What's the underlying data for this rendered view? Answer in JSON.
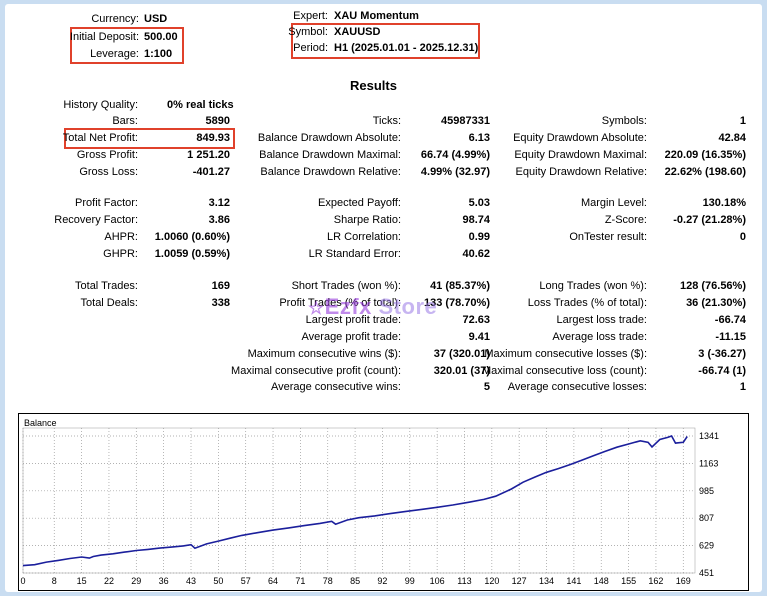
{
  "header": {
    "currency_label": "Currency:",
    "currency": "USD",
    "deposit_label": "Initial Deposit:",
    "deposit": "500.00",
    "leverage_label": "Leverage:",
    "leverage": "1:100",
    "expert_label": "Expert:",
    "expert": "XAU Momentum",
    "symbol_label": "Symbol:",
    "symbol": "XAUUSD",
    "period_label": "Period:",
    "period": "H1 (2025.01.01 - 2025.12.31)"
  },
  "results_title": "Results",
  "col1": {
    "history_quality_label": "History Quality:",
    "history_quality": "0% real ticks",
    "bars_label": "Bars:",
    "bars": "5890",
    "net_profit_label": "Total Net Profit:",
    "net_profit": "849.93",
    "gross_profit_label": "Gross Profit:",
    "gross_profit": "1 251.20",
    "gross_loss_label": "Gross Loss:",
    "gross_loss": "-401.27",
    "profit_factor_label": "Profit Factor:",
    "profit_factor": "3.12",
    "recovery_factor_label": "Recovery Factor:",
    "recovery_factor": "3.86",
    "ahpr_label": "AHPR:",
    "ahpr": "1.0060 (0.60%)",
    "ghpr_label": "GHPR:",
    "ghpr": "1.0059 (0.59%)",
    "total_trades_label": "Total Trades:",
    "total_trades": "169",
    "total_deals_label": "Total Deals:",
    "total_deals": "338"
  },
  "col2": {
    "ticks_label": "Ticks:",
    "ticks": "45987331",
    "bal_dd_abs_label": "Balance Drawdown Absolute:",
    "bal_dd_abs": "6.13",
    "bal_dd_max_label": "Balance Drawdown Maximal:",
    "bal_dd_max": "66.74 (4.99%)",
    "bal_dd_rel_label": "Balance Drawdown Relative:",
    "bal_dd_rel": "4.99% (32.97)",
    "expected_payoff_label": "Expected Payoff:",
    "expected_payoff": "5.03",
    "sharpe_label": "Sharpe Ratio:",
    "sharpe": "98.74",
    "lr_corr_label": "LR Correlation:",
    "lr_corr": "0.99",
    "lr_err_label": "LR Standard Error:",
    "lr_err": "40.62",
    "short_trades_label": "Short Trades (won %):",
    "short_trades": "41 (85.37%)",
    "profit_trades_label": "Profit Trades (% of total):",
    "profit_trades": "133 (78.70%)",
    "largest_profit_label": "Largest profit trade:",
    "largest_profit": "72.63",
    "avg_profit_label": "Average profit trade:",
    "avg_profit": "9.41",
    "max_cons_wins_label": "Maximum consecutive wins ($):",
    "max_cons_wins": "37 (320.01)",
    "max_cons_profit_label": "Maximal consecutive profit (count):",
    "max_cons_profit": "320.01 (37)",
    "avg_cons_wins_label": "Average consecutive wins:",
    "avg_cons_wins": "5"
  },
  "col3": {
    "symbols_label": "Symbols:",
    "symbols": "1",
    "eq_dd_abs_label": "Equity Drawdown Absolute:",
    "eq_dd_abs": "42.84",
    "eq_dd_max_label": "Equity Drawdown Maximal:",
    "eq_dd_max": "220.09 (16.35%)",
    "eq_dd_rel_label": "Equity Drawdown Relative:",
    "eq_dd_rel": "22.62% (198.60)",
    "margin_level_label": "Margin Level:",
    "margin_level": "130.18%",
    "z_score_label": "Z-Score:",
    "z_score": "-0.27 (21.28%)",
    "ontester_label": "OnTester result:",
    "ontester": "0",
    "long_trades_label": "Long Trades (won %):",
    "long_trades": "128 (76.56%)",
    "loss_trades_label": "Loss Trades (% of total):",
    "loss_trades": "36 (21.30%)",
    "largest_loss_label": "Largest loss trade:",
    "largest_loss": "-66.74",
    "avg_loss_label": "Average loss trade:",
    "avg_loss": "-11.15",
    "max_cons_losses_label": "Maximum consecutive losses ($):",
    "max_cons_losses": "3 (-36.27)",
    "max_cons_loss_label": "Maximal consecutive loss (count):",
    "max_cons_loss": "-66.74 (1)",
    "avg_cons_losses_label": "Average consecutive losses:",
    "avg_cons_losses": "1"
  },
  "watermark": {
    "part1": "Ezfx",
    "part2": "Store"
  },
  "colors": {
    "highlight": "#e0412b",
    "line": "#1b1f9c",
    "frame_bg": "#c9ddf1"
  },
  "chart_data": {
    "type": "line",
    "title": "Balance",
    "x_ticks": [
      "0",
      "8",
      "15",
      "22",
      "29",
      "36",
      "43",
      "50",
      "57",
      "64",
      "71",
      "78",
      "85",
      "92",
      "99",
      "106",
      "113",
      "120",
      "127",
      "134",
      "141",
      "148",
      "155",
      "162",
      "169"
    ],
    "y_ticks": [
      "1341",
      "1163",
      "985",
      "807",
      "629",
      "451"
    ],
    "xlim": [
      0,
      172
    ],
    "ylim": [
      451,
      1341
    ],
    "series": [
      {
        "x": [
          0,
          3,
          6,
          9,
          12,
          15,
          17,
          18,
          20,
          23,
          26,
          29,
          32,
          35,
          38,
          41,
          43,
          44,
          47,
          50,
          53,
          56,
          60,
          64,
          68,
          72,
          76,
          79,
          80,
          83,
          86,
          90,
          94,
          98,
          102,
          106,
          110,
          114,
          118,
          121,
          125,
          128,
          131,
          134,
          137,
          140,
          143,
          146,
          149,
          152,
          155,
          158,
          160,
          161,
          163,
          165,
          166,
          167,
          169,
          170
        ],
        "y": [
          499,
          505,
          522,
          533,
          545,
          555,
          548,
          558,
          567,
          576,
          587,
          597,
          604,
          613,
          619,
          627,
          635,
          612,
          640,
          658,
          677,
          695,
          713,
          730,
          744,
          759,
          773,
          787,
          768,
          795,
          810,
          822,
          837,
          851,
          864,
          878,
          893,
          910,
          929,
          950,
          997,
          1041,
          1074,
          1105,
          1129,
          1155,
          1184,
          1213,
          1241,
          1268,
          1289,
          1310,
          1300,
          1270,
          1318,
          1332,
          1341,
          1295,
          1300,
          1338
        ]
      }
    ]
  }
}
